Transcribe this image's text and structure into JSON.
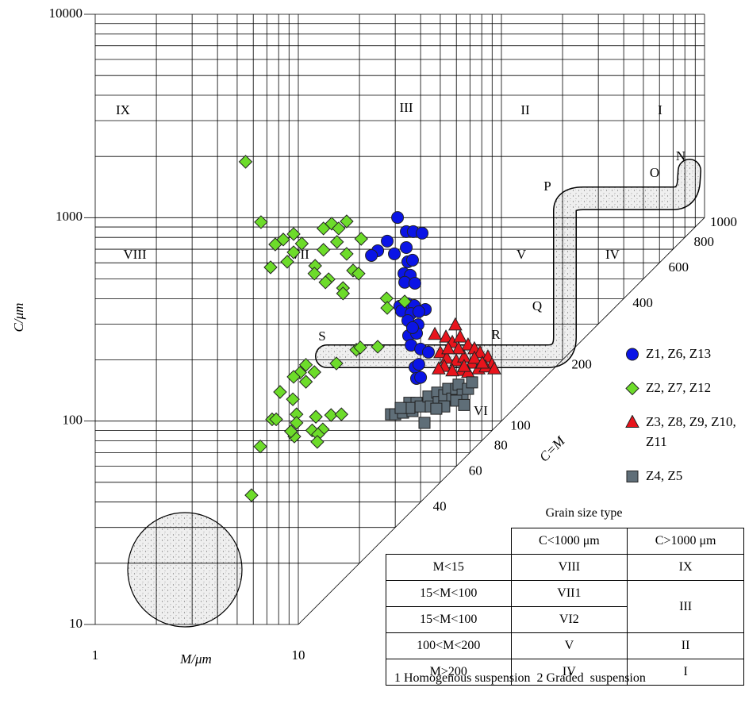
{
  "chart_data": {
    "type": "scatter",
    "xlabel": "M/μm",
    "ylabel": "C/μm",
    "xlim": [
      1,
      1000
    ],
    "ylim": [
      10,
      10000
    ],
    "xticks": [
      1,
      10
    ],
    "yticks": [
      10,
      100,
      1000,
      10000
    ],
    "log_x": true,
    "log_y": true,
    "grid": true,
    "log_minor_grid": true,
    "diagonal_label": "C=M",
    "diagonal_ticks": [
      40,
      60,
      80,
      100,
      200,
      400,
      600,
      800,
      1000
    ],
    "region_labels": [
      "IX",
      "III",
      "II",
      "I",
      "VIII",
      "VII",
      "V",
      "IV",
      "VI"
    ],
    "curve_labels": [
      "N",
      "O",
      "P",
      "Q",
      "R",
      "S"
    ],
    "series": [
      {
        "name": "Z1, Z6, Z13",
        "color": "#0a14e6",
        "marker": "circle",
        "x": [
          30.8,
          27.4,
          34.0,
          36.8,
          40.7,
          24.6,
          22.9,
          29.7,
          34.0,
          34.6,
          36.5,
          33.1,
          35.6,
          33.4,
          37.5,
          31.6,
          34.6,
          37.2,
          32.2,
          35.9,
          42.2,
          39.2,
          34.6,
          38.9,
          34.9,
          38.2,
          35.9,
          40.0,
          43.7,
          37.5,
          39.2,
          38.2,
          40.0,
          36.5
        ],
        "values": [
          1002,
          767,
          854,
          854,
          839,
          688,
          652,
          664,
          713,
          607,
          618,
          531,
          521,
          481,
          476,
          367,
          377,
          370,
          348,
          338,
          354,
          345,
          312,
          298,
          263,
          270,
          236,
          226,
          218,
          184,
          190,
          162,
          164,
          288
        ]
      },
      {
        "name": "Z2, Z7, Z12",
        "color": "#6ddc2a",
        "marker": "diamond",
        "x": [
          5.5,
          6.55,
          7.7,
          8.43,
          9.48,
          7.3,
          8.82,
          9.48,
          10.4,
          13.3,
          14.6,
          15.8,
          17.3,
          15.5,
          20.4,
          13.3,
          17.3,
          12.1,
          12.0,
          14.1,
          13.6,
          16.6,
          16.6,
          18.6,
          19.8,
          27.2,
          27.4,
          33.4,
          19.3,
          20.2,
          24.6,
          15.4,
          10.9,
          10.2,
          12.0,
          9.48,
          10.9,
          8.13,
          9.4,
          9.8,
          9.8,
          12.2,
          13.2,
          14.5,
          16.3,
          11.7,
          9.56,
          9.2,
          12.5,
          12.4,
          7.43,
          7.78,
          6.5,
          5.88
        ],
        "values": [
          1883,
          951,
          739,
          781,
          831,
          570,
          607,
          676,
          746,
          885,
          934,
          885,
          959,
          760,
          787,
          695,
          664,
          580,
          531,
          498,
          481,
          451,
          424,
          550,
          531,
          401,
          360,
          387,
          224,
          230,
          232,
          192,
          189,
          173,
          174,
          165,
          156,
          139,
          128,
          108,
          98,
          105,
          91,
          107,
          108,
          90,
          84,
          89,
          86,
          79,
          102,
          102,
          75,
          43.2
        ]
      },
      {
        "name": "Z3, Z8, Z9, Z10, Z11",
        "color": "#e8141c",
        "marker": "triangle",
        "x": [
          47.0,
          59.3,
          53.3,
          57.3,
          62.6,
          68.5,
          73.6,
          78.5,
          85.8,
          89.8,
          50.0,
          53.8,
          52.3,
          59.9,
          65.5,
          71.7,
          77.1,
          63.8,
          68.5,
          57.3,
          49.1,
          83.5,
          73.6,
          61.5,
          54.7,
          80.5,
          92.2,
          65.5
        ],
        "values": [
          266,
          296,
          258,
          243,
          258,
          236,
          226,
          216,
          206,
          189,
          216,
          203,
          185,
          197,
          206,
          192,
          180,
          177,
          173,
          176,
          180,
          184,
          203,
          226,
          226,
          192,
          180,
          185
        ]
      },
      {
        "name": "Z4, Z5",
        "color": "#5f6e78",
        "marker": "square",
        "x": [
          28.6,
          30.0,
          32.8,
          35.2,
          36.5,
          38.2,
          40.0,
          43.7,
          44.9,
          41.8,
          48.3,
          49.1,
          52.3,
          54.7,
          57.3,
          59.9,
          61.5,
          64.4,
          68.5,
          71.7,
          52.3,
          47.8,
          59.9,
          65.5,
          35.2,
          31.9
        ],
        "values": [
          108,
          108,
          110,
          123,
          112,
          123,
          118,
          132,
          118,
          98,
          138,
          124,
          134,
          144,
          129,
          144,
          151,
          135,
          144,
          155,
          118,
          115,
          126,
          120,
          116,
          116
        ]
      }
    ]
  },
  "table": {
    "title": "Grain size type",
    "header": [
      "C<1000 μm",
      "C>1000 μm"
    ],
    "rows": [
      [
        "M<15",
        "VIII",
        "IX"
      ],
      [
        "15<M<100",
        "VII1",
        "III"
      ],
      [
        "15<M<100",
        "VI2"
      ],
      [
        "100<M<200",
        "V",
        "II"
      ],
      [
        "M>200",
        "IV",
        "I"
      ]
    ]
  },
  "footnote": "1 Homogenous suspension  2 Graded  suspension"
}
